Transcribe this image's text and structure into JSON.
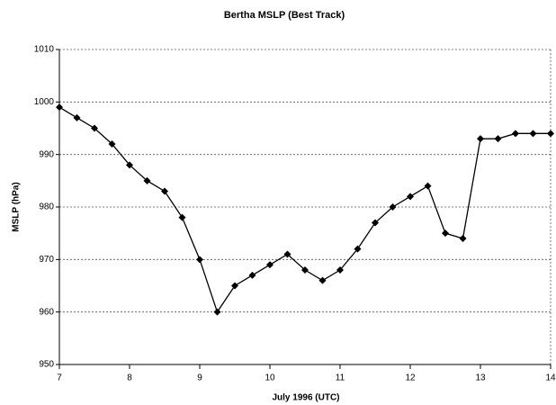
{
  "chart_data": {
    "type": "line",
    "title": "Bertha MSLP (Best Track)",
    "x_label": "July 1996  (UTC)",
    "y_label": "MSLP (hPa)",
    "x": [
      7,
      7.25,
      7.5,
      7.75,
      8,
      8.25,
      8.5,
      8.75,
      9,
      9.25,
      9.5,
      9.75,
      10,
      10.25,
      10.5,
      10.75,
      11,
      11.25,
      11.5,
      11.75,
      12,
      12.25,
      12.5,
      12.75,
      13,
      13.25,
      13.5,
      13.75,
      14
    ],
    "values": [
      999,
      997,
      995,
      992,
      988,
      985,
      983,
      978,
      970,
      960,
      965,
      967,
      969,
      971,
      968,
      966,
      968,
      972,
      977,
      980,
      982,
      984,
      975,
      974,
      993,
      993,
      994,
      994,
      994
    ],
    "color": "#000000",
    "xlim": [
      7,
      14
    ],
    "xticks": [
      7,
      8,
      9,
      10,
      11,
      12,
      13,
      14
    ],
    "ylim": [
      950,
      1010
    ],
    "yticks": [
      950,
      960,
      970,
      980,
      990,
      1000,
      1010
    ],
    "grid": true
  }
}
